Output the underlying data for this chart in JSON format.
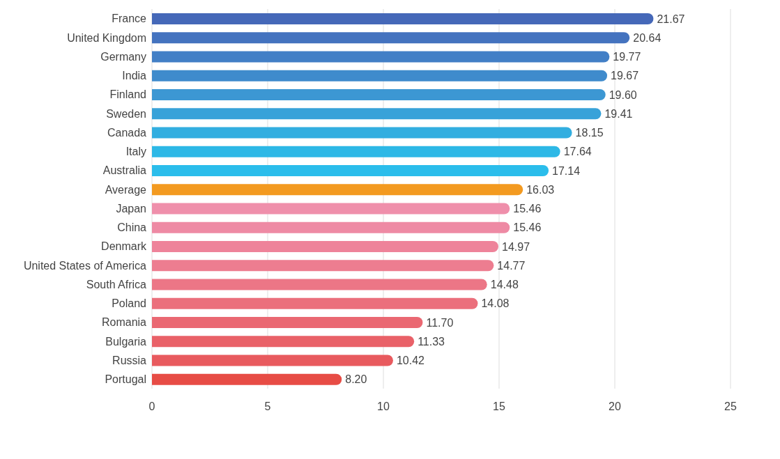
{
  "chart_data": {
    "type": "bar",
    "orientation": "horizontal",
    "categories": [
      "France",
      "United Kingdom",
      "Germany",
      "India",
      "Finland",
      "Sweden",
      "Canada",
      "Italy",
      "Australia",
      "Average",
      "Japan",
      "China",
      "Denmark",
      "United States of America",
      "South Africa",
      "Poland",
      "Romania",
      "Bulgaria",
      "Russia",
      "Portugal"
    ],
    "values": [
      21.67,
      20.64,
      19.77,
      19.67,
      19.6,
      19.41,
      18.15,
      17.64,
      17.14,
      16.03,
      15.46,
      15.46,
      14.97,
      14.77,
      14.48,
      14.08,
      11.7,
      11.33,
      10.42,
      8.2
    ],
    "value_labels": [
      "21.67",
      "20.64",
      "19.77",
      "19.67",
      "19.60",
      "19.41",
      "18.15",
      "17.64",
      "17.14",
      "16.03",
      "15.46",
      "15.46",
      "14.97",
      "14.77",
      "14.48",
      "14.08",
      "11.70",
      "11.33",
      "10.42",
      "8.20"
    ],
    "colors": [
      "#4568b8",
      "#4473bf",
      "#427fc6",
      "#3f8bcc",
      "#3c97d3",
      "#38a2d9",
      "#32aee0",
      "#2db8e6",
      "#2bbdeb",
      "#f39a20",
      "#ef8fab",
      "#ee8aa4",
      "#ee839a",
      "#ed7d90",
      "#ec7686",
      "#eb6f7c",
      "#ea6872",
      "#e96168",
      "#e85a5e",
      "#e74c45"
    ],
    "xlim": [
      0,
      25
    ],
    "xticks": [
      0,
      5,
      10,
      15,
      20,
      25
    ],
    "grid": "x"
  }
}
